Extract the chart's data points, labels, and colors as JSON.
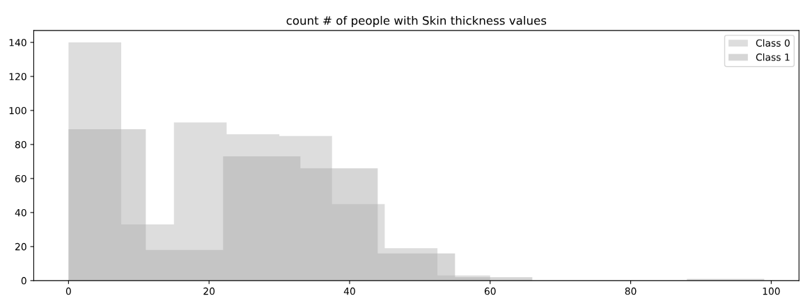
{
  "chart_data": {
    "type": "histogram",
    "title": "count # of people with Skin thickness values",
    "bins": [
      0,
      7.5,
      11,
      15,
      22,
      22.5,
      30,
      33,
      37.5,
      44,
      45,
      52.5,
      55,
      60,
      66,
      77,
      88,
      99
    ],
    "series": [
      {
        "name": "Class 0",
        "color": "#bbbbbb",
        "values": [
          140,
          33,
          33,
          93,
          93,
          86,
          85,
          85,
          45,
          45,
          19,
          3,
          3,
          null,
          null,
          null,
          null
        ]
      },
      {
        "name": "Class 1",
        "color": "#adadad",
        "values": [
          89,
          89,
          18,
          18,
          73,
          73,
          73,
          66,
          66,
          16,
          16,
          16,
          2,
          2,
          0,
          0,
          1
        ]
      }
    ],
    "xlim": [
      -4.95,
      103.95
    ],
    "xticks": [
      0,
      20,
      40,
      60,
      80,
      100
    ],
    "ylim": [
      0,
      147
    ],
    "yticks": [
      0,
      20,
      40,
      60,
      80,
      100,
      120,
      140
    ],
    "grid": false,
    "legend": "top right"
  }
}
